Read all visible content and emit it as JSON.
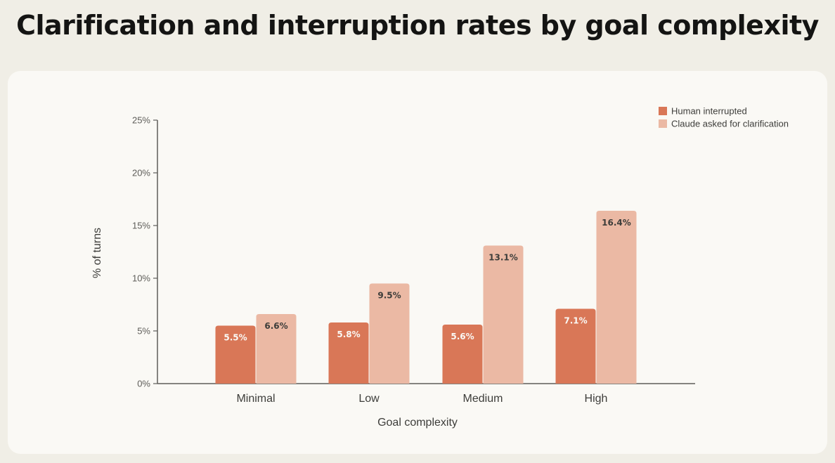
{
  "chart_data": {
    "type": "bar",
    "title": "Clarification and interruption rates by goal complexity",
    "xlabel": "Goal complexity",
    "ylabel": "% of turns",
    "categories": [
      "Minimal",
      "Low",
      "Medium",
      "High"
    ],
    "series": [
      {
        "name": "Human interrupted",
        "values": [
          5.5,
          5.8,
          5.6,
          7.1
        ],
        "color": "#d97757",
        "label_color": "#faf9f5"
      },
      {
        "name": "Claude asked for clarification",
        "values": [
          6.6,
          9.5,
          13.1,
          16.4
        ],
        "color": "#ebb9a4",
        "label_color": "#3d3d3a"
      }
    ],
    "value_labels": [
      [
        "5.5%",
        "5.8%",
        "5.6%",
        "7.1%"
      ],
      [
        "6.6%",
        "9.5%",
        "13.1%",
        "16.4%"
      ]
    ],
    "ylim": [
      0,
      25
    ],
    "yticks": [
      0,
      5,
      10,
      15,
      20,
      25
    ],
    "ytick_labels": [
      "0%",
      "5%",
      "10%",
      "15%",
      "20%",
      "25%"
    ],
    "legend_position": "top-right",
    "grid": false
  }
}
